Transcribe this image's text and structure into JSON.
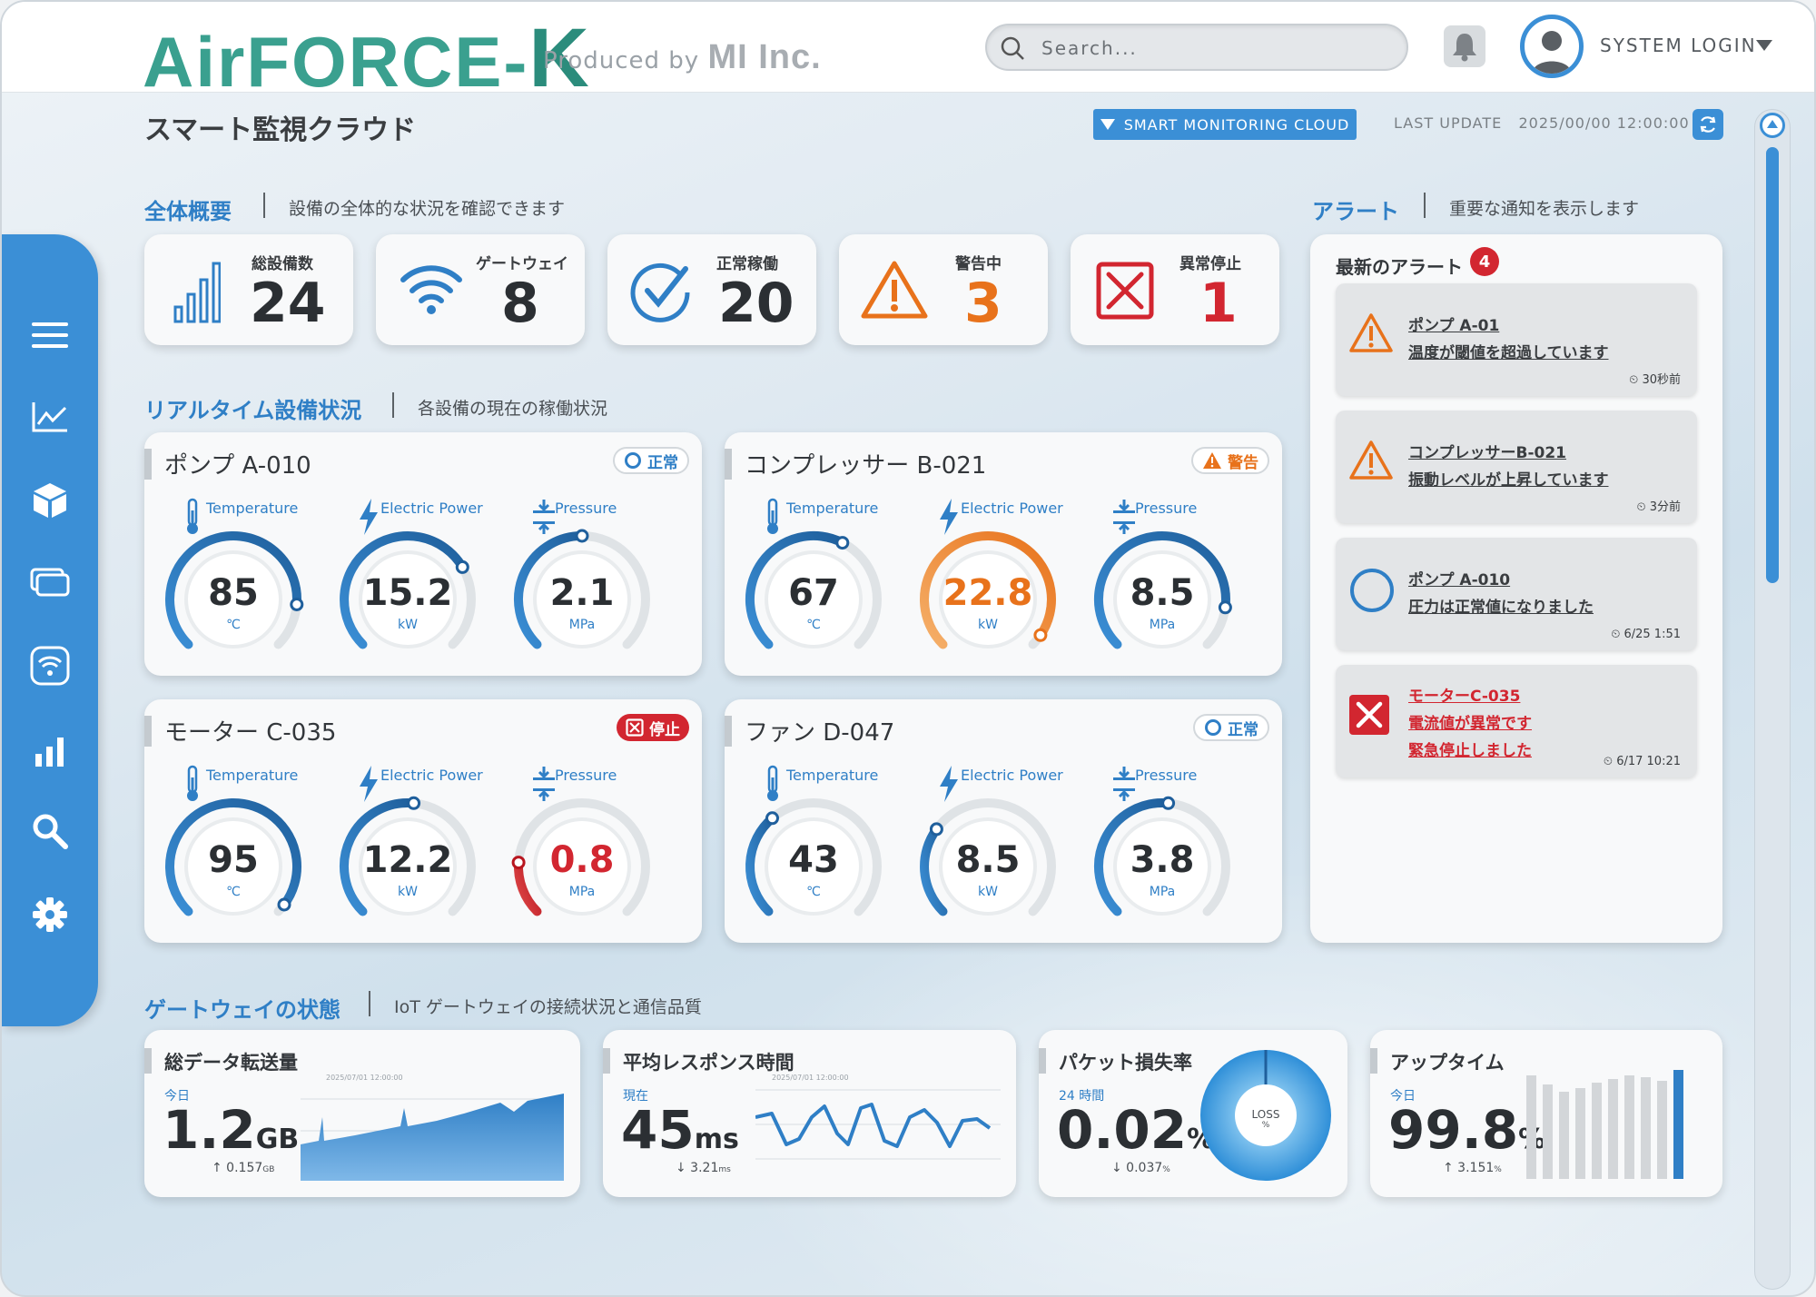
{
  "header": {
    "logo": "AirFORCE-",
    "logo_k": "K",
    "produced_by": "Produced by",
    "company": "MI Inc.",
    "search_placeholder": "Search...",
    "login_label": "SYSTEM LOGIN"
  },
  "title_row": {
    "page_title": "スマート監視クラウド",
    "badge": "SMART MONITORING CLOUD",
    "last_update_label": "LAST UPDATE",
    "last_update_value": "2025/00/00  12:00:00"
  },
  "colors": {
    "accent": "#3b8fd6",
    "warning": "#e8721b",
    "danger": "#d22630",
    "teal": "#3aa08f"
  },
  "sidebar": {
    "items": [
      {
        "icon": "menu-icon"
      },
      {
        "icon": "line-chart-icon"
      },
      {
        "icon": "cube-icon"
      },
      {
        "icon": "devices-icon"
      },
      {
        "icon": "wifi-icon"
      },
      {
        "icon": "bar-chart-icon"
      },
      {
        "icon": "search-icon"
      },
      {
        "icon": "gear-icon"
      }
    ]
  },
  "overview": {
    "title": "全体概要",
    "desc": "設備の全体的な状況を確認できます",
    "stats": [
      {
        "label": "総設備数",
        "value": "24",
        "icon": "signal-bars-icon"
      },
      {
        "label": "ゲートウェイ",
        "value": "8",
        "icon": "wifi-icon"
      },
      {
        "label": "正常稼働",
        "value": "20",
        "icon": "check-circle-icon"
      },
      {
        "label": "警告中",
        "value": "3",
        "icon": "warning-icon"
      },
      {
        "label": "異常停止",
        "value": "1",
        "icon": "error-x-icon"
      }
    ]
  },
  "realtime": {
    "title": "リアルタイム設備状況",
    "desc": "各設備の現在の稼働状況",
    "metric_labels": [
      "Temperature",
      "Electric Power",
      "Pressure"
    ],
    "equipment": [
      {
        "name": "ポンプ A-010",
        "status": "正常",
        "status_type": "ok",
        "metrics": [
          {
            "value": "85",
            "unit": "℃",
            "fraction": 0.85,
            "color": "blue"
          },
          {
            "value": "15.2",
            "unit": "kW",
            "fraction": 0.72,
            "color": "blue"
          },
          {
            "value": "2.1",
            "unit": "MPa",
            "fraction": 0.5,
            "color": "blue"
          }
        ]
      },
      {
        "name": "コンプレッサー B-021",
        "status": "警告",
        "status_type": "warn",
        "metrics": [
          {
            "value": "67",
            "unit": "℃",
            "fraction": 0.6,
            "color": "blue"
          },
          {
            "value": "22.8",
            "unit": "kW",
            "fraction": 0.96,
            "color": "orange"
          },
          {
            "value": "8.5",
            "unit": "MPa",
            "fraction": 0.86,
            "color": "blue"
          }
        ]
      },
      {
        "name": "モーター C-035",
        "status": "停止",
        "status_type": "stop",
        "metrics": [
          {
            "value": "95",
            "unit": "℃",
            "fraction": 0.97,
            "color": "blue"
          },
          {
            "value": "12.2",
            "unit": "kW",
            "fraction": 0.52,
            "color": "blue"
          },
          {
            "value": "0.8",
            "unit": "MPa",
            "fraction": 0.18,
            "color": "red"
          }
        ]
      },
      {
        "name": "ファン D-047",
        "status": "正常",
        "status_type": "ok",
        "metrics": [
          {
            "value": "43",
            "unit": "℃",
            "fraction": 0.35,
            "color": "blue"
          },
          {
            "value": "8.5",
            "unit": "kW",
            "fraction": 0.3,
            "color": "blue"
          },
          {
            "value": "3.8",
            "unit": "MPa",
            "fraction": 0.52,
            "color": "blue"
          }
        ]
      }
    ]
  },
  "alerts": {
    "title": "アラート",
    "desc": "重要な通知を表示します",
    "panel_title": "最新のアラート",
    "count": "4",
    "items": [
      {
        "type": "warn",
        "lines": [
          "ポンプ A-01",
          "温度が閾値を超過しています"
        ],
        "time": "30秒前"
      },
      {
        "type": "warn",
        "lines": [
          "コンプレッサーB-021",
          "振動レベルが上昇しています"
        ],
        "time": "3分前"
      },
      {
        "type": "ok",
        "lines": [
          "ポンプ A-010",
          "圧力は正常値になりました"
        ],
        "time": "6/25 1:51"
      },
      {
        "type": "stop",
        "lines": [
          "モーターC-035",
          "電流値が異常です",
          "緊急停止しました"
        ],
        "time": "6/17 10:21"
      }
    ]
  },
  "gateway": {
    "title": "ゲートウェイの状態",
    "desc": "IoT ゲートウェイの接続状況と通信品質",
    "cards": [
      {
        "title": "総データ転送量",
        "sub": "今日",
        "value": "1.2",
        "unit": "GB",
        "delta": "↑ 0.157",
        "delta_unit": "GB",
        "chart_note": "2025/07/01  12:00:00"
      },
      {
        "title": "平均レスポンス時間",
        "sub": "現在",
        "value": "45",
        "unit": "ms",
        "delta": "↓ 3.21",
        "delta_unit": "ms",
        "chart_note": "2025/07/01  12:00:00"
      },
      {
        "title": "パケット損失率",
        "sub": "24 時間",
        "value": "0.02",
        "unit": "%",
        "delta": "↓ 0.037",
        "delta_unit": "%",
        "donut_label": "LOSS",
        "donut_unit": "%"
      },
      {
        "title": "アップタイム",
        "sub": "今日",
        "value": "99.8",
        "unit": "%",
        "delta": "↑ 3.151",
        "delta_unit": "%"
      }
    ]
  }
}
